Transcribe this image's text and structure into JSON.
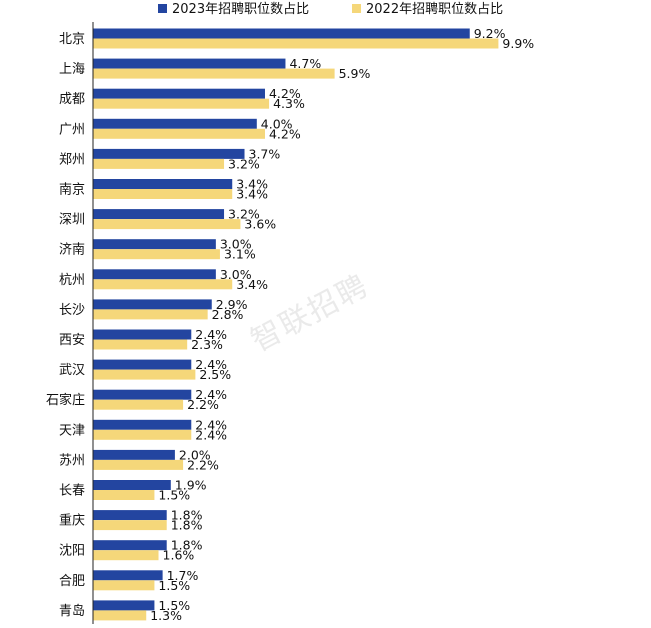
{
  "chart_data": {
    "type": "bar",
    "orientation": "horizontal",
    "categories": [
      "北京",
      "上海",
      "成都",
      "广州",
      "郑州",
      "南京",
      "深圳",
      "济南",
      "杭州",
      "长沙",
      "西安",
      "武汉",
      "石家庄",
      "天津",
      "苏州",
      "长春",
      "重庆",
      "沈阳",
      "合肥",
      "青岛"
    ],
    "series": [
      {
        "name": "2023年招聘职位数占比",
        "color": "#2345a0",
        "values": [
          9.2,
          4.7,
          4.2,
          4.0,
          3.7,
          3.4,
          3.2,
          3.0,
          3.0,
          2.9,
          2.4,
          2.4,
          2.4,
          2.4,
          2.0,
          1.9,
          1.8,
          1.8,
          1.7,
          1.5
        ],
        "labels": [
          "9.2%",
          "4.7%",
          "4.2%",
          "4.0%",
          "3.7%",
          "3.4%",
          "3.2%",
          "3.0%",
          "3.0%",
          "2.9%",
          "2.4%",
          "2.4%",
          "2.4%",
          "2.4%",
          "2.0%",
          "1.9%",
          "1.8%",
          "1.8%",
          "1.7%",
          "1.5%"
        ]
      },
      {
        "name": "2022年招聘职位数占比",
        "color": "#f5d77a",
        "values": [
          9.9,
          5.9,
          4.3,
          4.2,
          3.2,
          3.4,
          3.6,
          3.1,
          3.4,
          2.8,
          2.3,
          2.5,
          2.2,
          2.4,
          2.2,
          1.5,
          1.8,
          1.6,
          1.5,
          1.3
        ],
        "labels": [
          "9.9%",
          "5.9%",
          "4.3%",
          "4.2%",
          "3.2%",
          "3.4%",
          "3.6%",
          "3.1%",
          "3.4%",
          "2.8%",
          "2.3%",
          "2.5%",
          "2.2%",
          "2.4%",
          "2.2%",
          "1.5%",
          "1.8%",
          "1.6%",
          "1.5%",
          "1.3%"
        ]
      }
    ],
    "xlim": [
      0,
      10
    ],
    "legend_position": "top",
    "grid": false,
    "watermark": "智联招聘"
  }
}
